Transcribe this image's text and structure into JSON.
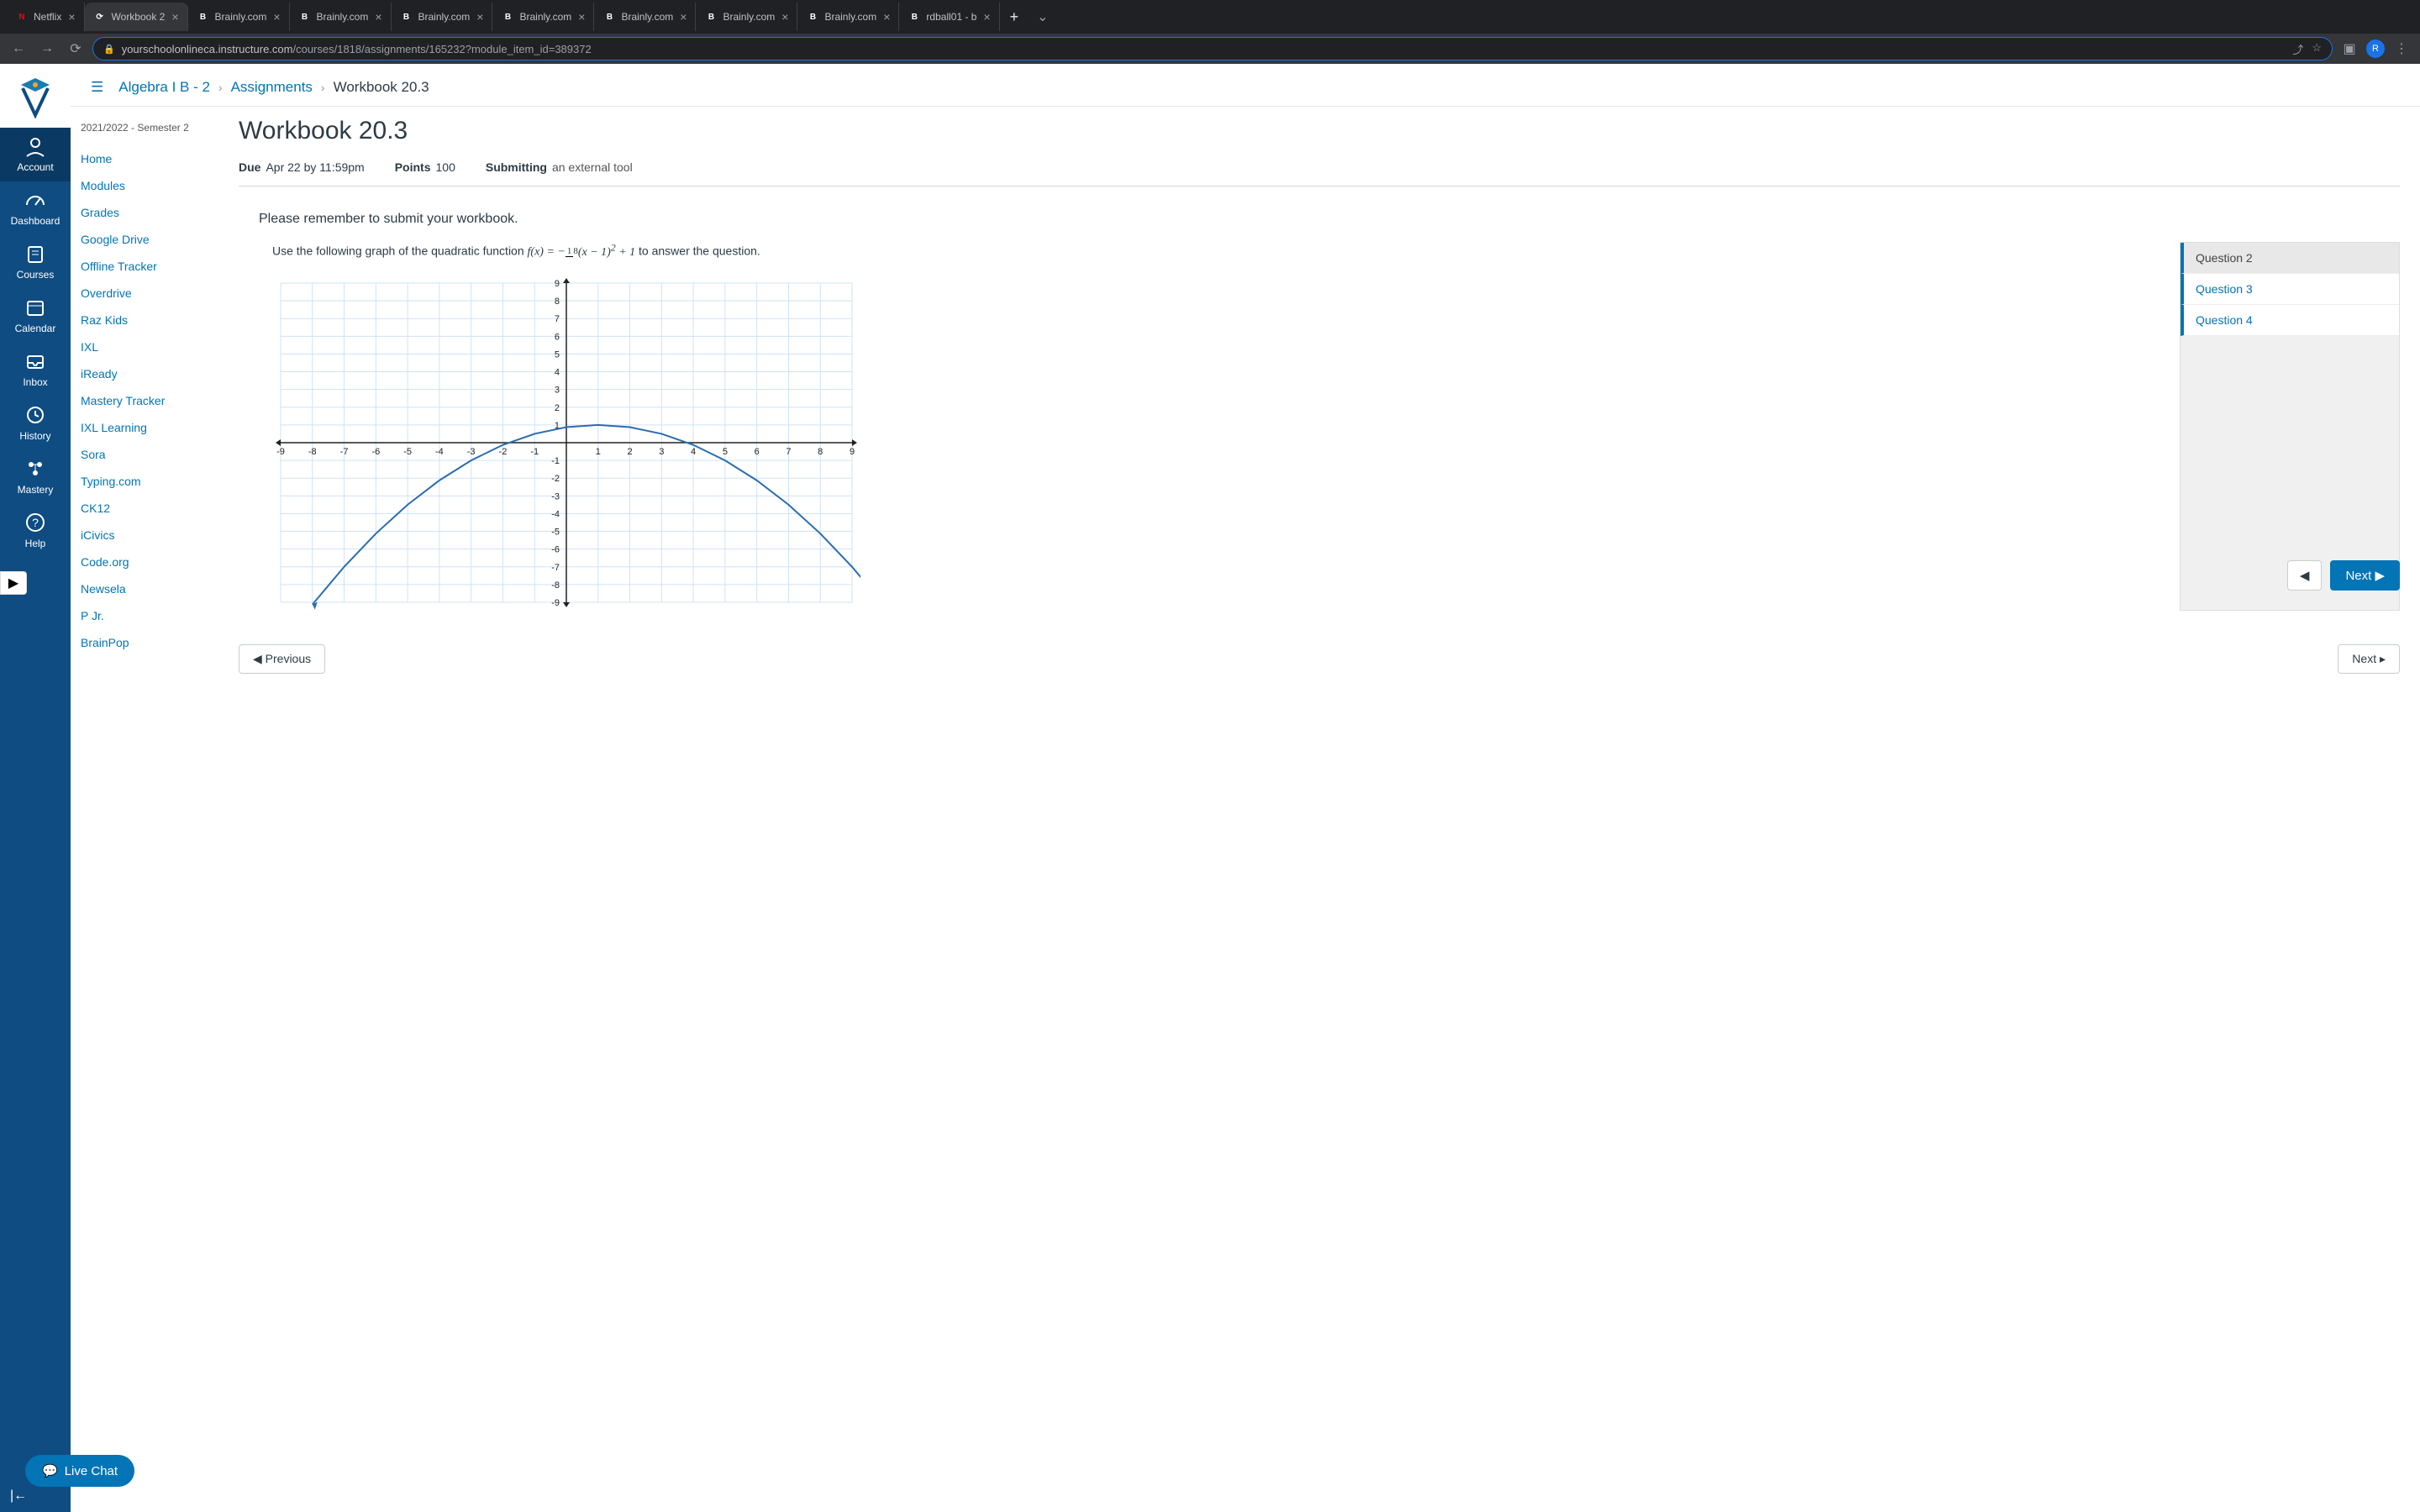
{
  "tabs": [
    {
      "label": "Netflix",
      "favColor": "#e50914",
      "favLetter": "N"
    },
    {
      "label": "Workbook 2",
      "favColor": "#ffffff",
      "favLetter": "⟳",
      "active": true
    },
    {
      "label": "Brainly.com",
      "favColor": "#ffffff",
      "favLetter": "B"
    },
    {
      "label": "Brainly.com",
      "favColor": "#ffffff",
      "favLetter": "B"
    },
    {
      "label": "Brainly.com",
      "favColor": "#ffffff",
      "favLetter": "B"
    },
    {
      "label": "Brainly.com",
      "favColor": "#ffffff",
      "favLetter": "B"
    },
    {
      "label": "Brainly.com",
      "favColor": "#ffffff",
      "favLetter": "B"
    },
    {
      "label": "Brainly.com",
      "favColor": "#ffffff",
      "favLetter": "B"
    },
    {
      "label": "Brainly.com",
      "favColor": "#ffffff",
      "favLetter": "B"
    },
    {
      "label": "rdball01 - b",
      "favColor": "#ffffff",
      "favLetter": "B"
    }
  ],
  "url": {
    "domain": "yourschoolonlineca.instructure.com",
    "path": "/courses/1818/assignments/165232?module_item_id=389372"
  },
  "profileLetter": "R",
  "globalNav": [
    {
      "label": "Account",
      "icon": "account"
    },
    {
      "label": "Dashboard",
      "icon": "dashboard"
    },
    {
      "label": "Courses",
      "icon": "courses"
    },
    {
      "label": "Calendar",
      "icon": "calendar"
    },
    {
      "label": "Inbox",
      "icon": "inbox"
    },
    {
      "label": "History",
      "icon": "history"
    },
    {
      "label": "Mastery",
      "icon": "mastery"
    },
    {
      "label": "Help",
      "icon": "help"
    }
  ],
  "breadcrumbs": {
    "course": "Algebra I B - 2",
    "section": "Assignments",
    "current": "Workbook 20.3"
  },
  "courseNav": {
    "term": "2021/2022 - Semester 2",
    "links": [
      "Home",
      "Modules",
      "Grades",
      "Google Drive",
      "Offline Tracker",
      "Overdrive",
      "Raz Kids",
      "IXL",
      "iReady",
      "Mastery Tracker",
      "IXL Learning",
      "Sora",
      "Typing.com",
      "CK12",
      "iCivics",
      "Code.org",
      "Newsela",
      "P Jr.",
      "BrainPop"
    ]
  },
  "assignment": {
    "title": "Workbook 20.3",
    "dueLabel": "Due",
    "dueValue": "Apr 22 by 11:59pm",
    "pointsLabel": "Points",
    "pointsValue": "100",
    "submitLabel": "Submitting",
    "submitValue": "an external tool",
    "reminder": "Please remember to submit your workbook.",
    "instructionPrefix": "Use the following graph of the quadratic function ",
    "instructionSuffix": " to answer the question."
  },
  "chart": {
    "type": "line",
    "xlim": [
      -9,
      9
    ],
    "ylim": [
      -9,
      9
    ],
    "xtick_step": 1,
    "ytick_step": 1,
    "curve_color": "#2b6cb0",
    "curve_width": 2,
    "grid_color": "#cfe3f5",
    "axis_color": "#222222",
    "label_color": "#222222",
    "label_fontsize": 11,
    "background_color": "#ffffff",
    "function": {
      "a": -0.125,
      "h": 1,
      "k": 1,
      "formula_tex": "f(x) = -1/8 (x - 1)^2 + 1"
    },
    "points": [
      {
        "x": -8,
        "y": -9.125
      },
      {
        "x": -7,
        "y": -7
      },
      {
        "x": -6,
        "y": -5.125
      },
      {
        "x": -5,
        "y": -3.5
      },
      {
        "x": -4,
        "y": -2.125
      },
      {
        "x": -3,
        "y": -1
      },
      {
        "x": -2,
        "y": -0.125
      },
      {
        "x": -1,
        "y": 0.5
      },
      {
        "x": 0,
        "y": 0.875
      },
      {
        "x": 1,
        "y": 1
      },
      {
        "x": 2,
        "y": 0.875
      },
      {
        "x": 3,
        "y": 0.5
      },
      {
        "x": 4,
        "y": -0.125
      },
      {
        "x": 5,
        "y": -1
      },
      {
        "x": 6,
        "y": -2.125
      },
      {
        "x": 7,
        "y": -3.5
      },
      {
        "x": 8,
        "y": -5.125
      },
      {
        "x": 9,
        "y": -7
      },
      {
        "x": 10,
        "y": -9.125
      }
    ]
  },
  "questions": [
    {
      "label": "Question 2",
      "selected": true
    },
    {
      "label": "Question 3"
    },
    {
      "label": "Question 4"
    }
  ],
  "buttons": {
    "prev": "◀",
    "next": "Next ▶",
    "bottomPrev": "◀ Previous",
    "bottomNext": "Next ▸"
  },
  "liveChat": "Live Chat"
}
